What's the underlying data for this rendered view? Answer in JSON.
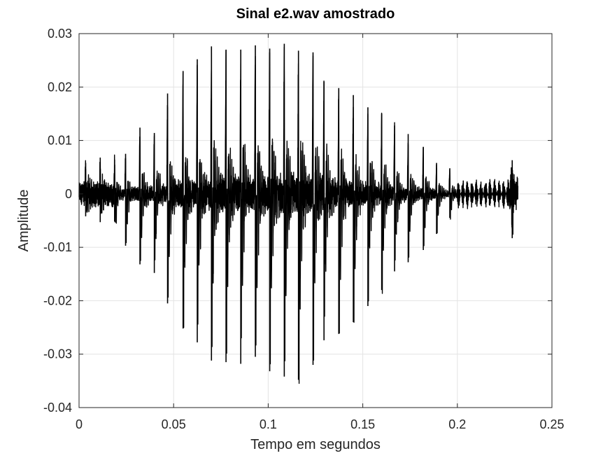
{
  "chart_data": {
    "type": "line",
    "title": "Sinal e2.wav amostrado",
    "xlabel": "Tempo em segundos",
    "ylabel": "Amplitude",
    "xlim": [
      0,
      0.25
    ],
    "ylim": [
      -0.04,
      0.03
    ],
    "xticks": [
      0,
      0.05,
      0.1,
      0.15,
      0.2,
      0.25
    ],
    "xtick_labels": [
      "0",
      "0.05",
      "0.1",
      "0.15",
      "0.2",
      "0.25"
    ],
    "yticks": [
      -0.04,
      -0.03,
      -0.02,
      -0.01,
      0,
      0.01,
      0.02,
      0.03
    ],
    "ytick_labels": [
      "-0.04",
      "-0.03",
      "-0.02",
      "-0.01",
      "0",
      "0.01",
      "0.02",
      "0.03"
    ],
    "grid": true,
    "line_color": "#000000",
    "duration": 0.232,
    "series": [
      {
        "pulse_period": 0.00766,
        "pulse_peaks": [
          {
            "t": 0.0035,
            "max": 0.0058,
            "min": -0.0042
          },
          {
            "t": 0.0112,
            "max": 0.0068,
            "min": -0.0053
          },
          {
            "t": 0.0188,
            "max": 0.0064,
            "min": -0.0052
          },
          {
            "t": 0.0246,
            "max": 0.0075,
            "min": -0.0097
          },
          {
            "t": 0.0322,
            "max": 0.0124,
            "min": -0.0132
          },
          {
            "t": 0.0398,
            "max": 0.0114,
            "min": -0.0148
          },
          {
            "t": 0.0468,
            "max": 0.0188,
            "min": -0.0205
          },
          {
            "t": 0.055,
            "max": 0.023,
            "min": -0.0252
          },
          {
            "t": 0.0625,
            "max": 0.0252,
            "min": -0.0278
          },
          {
            "t": 0.07,
            "max": 0.0276,
            "min": -0.0312
          },
          {
            "t": 0.0777,
            "max": 0.027,
            "min": -0.0315
          },
          {
            "t": 0.0855,
            "max": 0.027,
            "min": -0.0318
          },
          {
            "t": 0.0932,
            "max": 0.0278,
            "min": -0.0305
          },
          {
            "t": 0.1008,
            "max": 0.0272,
            "min": -0.0332
          },
          {
            "t": 0.1085,
            "max": 0.0281,
            "min": -0.0342
          },
          {
            "t": 0.116,
            "max": 0.0268,
            "min": -0.0348
          },
          {
            "t": 0.1237,
            "max": 0.0265,
            "min": -0.032
          },
          {
            "t": 0.1295,
            "max": 0.021,
            "min": -0.0274
          },
          {
            "t": 0.1373,
            "max": 0.0198,
            "min": -0.0262
          },
          {
            "t": 0.145,
            "max": 0.0185,
            "min": -0.024
          },
          {
            "t": 0.1527,
            "max": 0.0162,
            "min": -0.021
          },
          {
            "t": 0.16,
            "max": 0.015,
            "min": -0.018
          },
          {
            "t": 0.1668,
            "max": 0.0128,
            "min": -0.0145
          },
          {
            "t": 0.174,
            "max": 0.0112,
            "min": -0.0128
          },
          {
            "t": 0.182,
            "max": 0.0088,
            "min": -0.0105
          },
          {
            "t": 0.189,
            "max": 0.0058,
            "min": -0.0075
          },
          {
            "t": 0.196,
            "max": 0.0048,
            "min": -0.0045
          }
        ],
        "noise_segment": {
          "t_start": 0.2,
          "t_end": 0.232,
          "amplitude": 0.0028,
          "burst_t": 0.229,
          "burst_max": 0.0063,
          "burst_min": -0.0083
        }
      }
    ]
  }
}
